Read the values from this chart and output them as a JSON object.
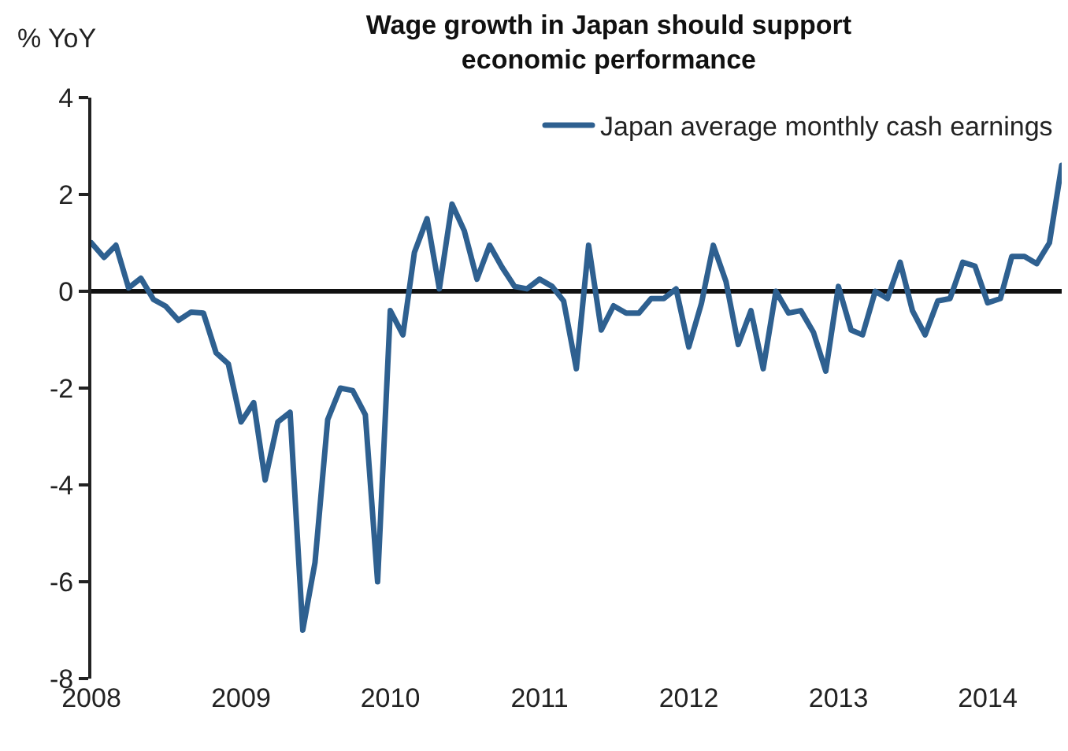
{
  "chart_data": {
    "type": "line",
    "title": "Wage growth in Japan should support economic performance",
    "ylabel": "% YoY",
    "x": [
      "2008-01",
      "2008-02",
      "2008-03",
      "2008-04",
      "2008-05",
      "2008-06",
      "2008-07",
      "2008-08",
      "2008-09",
      "2008-10",
      "2008-11",
      "2008-12",
      "2009-01",
      "2009-02",
      "2009-03",
      "2009-04",
      "2009-05",
      "2009-06",
      "2009-07",
      "2009-08",
      "2009-09",
      "2009-10",
      "2009-11",
      "2009-12",
      "2010-01",
      "2010-02",
      "2010-03",
      "2010-04",
      "2010-05",
      "2010-06",
      "2010-07",
      "2010-08",
      "2010-09",
      "2010-10",
      "2010-11",
      "2010-12",
      "2011-01",
      "2011-02",
      "2011-03",
      "2011-04",
      "2011-05",
      "2011-06",
      "2011-07",
      "2011-08",
      "2011-09",
      "2011-10",
      "2011-11",
      "2011-12",
      "2012-01",
      "2012-02",
      "2012-03",
      "2012-04",
      "2012-05",
      "2012-06",
      "2012-07",
      "2012-08",
      "2012-09",
      "2012-10",
      "2012-11",
      "2012-12",
      "2013-01",
      "2013-02",
      "2013-03",
      "2013-04",
      "2013-05",
      "2013-06",
      "2013-07",
      "2013-08",
      "2013-09",
      "2013-10",
      "2013-11",
      "2013-12",
      "2014-01",
      "2014-02",
      "2014-03",
      "2014-04",
      "2014-05",
      "2014-06",
      "2014-07"
    ],
    "series": [
      {
        "name": "Japan average monthly cash earnings",
        "color": "#2e6090",
        "values": [
          1.0,
          0.7,
          0.95,
          0.07,
          0.27,
          -0.17,
          -0.31,
          -0.6,
          -0.43,
          -0.45,
          -1.27,
          -1.5,
          -2.7,
          -2.3,
          -3.9,
          -2.7,
          -2.5,
          -7.0,
          -5.6,
          -2.65,
          -2.0,
          -2.05,
          -2.55,
          -6.0,
          -0.4,
          -0.9,
          0.8,
          1.5,
          0.05,
          1.8,
          1.25,
          0.25,
          0.95,
          0.5,
          0.1,
          0.05,
          0.25,
          0.1,
          -0.2,
          -1.6,
          0.95,
          -0.8,
          -0.3,
          -0.45,
          -0.45,
          -0.15,
          -0.15,
          0.05,
          -1.15,
          -0.25,
          0.95,
          0.2,
          -1.1,
          -0.4,
          -1.6,
          0.0,
          -0.45,
          -0.4,
          -0.85,
          -1.65,
          0.1,
          -0.8,
          -0.9,
          0.0,
          -0.15,
          0.6,
          -0.4,
          -0.9,
          -0.2,
          -0.15,
          0.6,
          0.52,
          -0.24,
          -0.15,
          0.72,
          0.72,
          0.57,
          1.0,
          2.6
        ]
      }
    ],
    "xlim": [
      "2008-01",
      "2014-07"
    ],
    "xticks": [
      {
        "value": "2008-01",
        "label": "2008"
      },
      {
        "value": "2009-01",
        "label": "2009"
      },
      {
        "value": "2010-01",
        "label": "2010"
      },
      {
        "value": "2011-01",
        "label": "2011"
      },
      {
        "value": "2012-01",
        "label": "2012"
      },
      {
        "value": "2013-01",
        "label": "2013"
      },
      {
        "value": "2014-01",
        "label": "2014"
      }
    ],
    "ylim": [
      -8,
      4
    ],
    "yticks": [
      -8,
      -6,
      -4,
      -2,
      0,
      2,
      4
    ],
    "legend": "top right",
    "marker": "none",
    "line_style": "solid"
  }
}
